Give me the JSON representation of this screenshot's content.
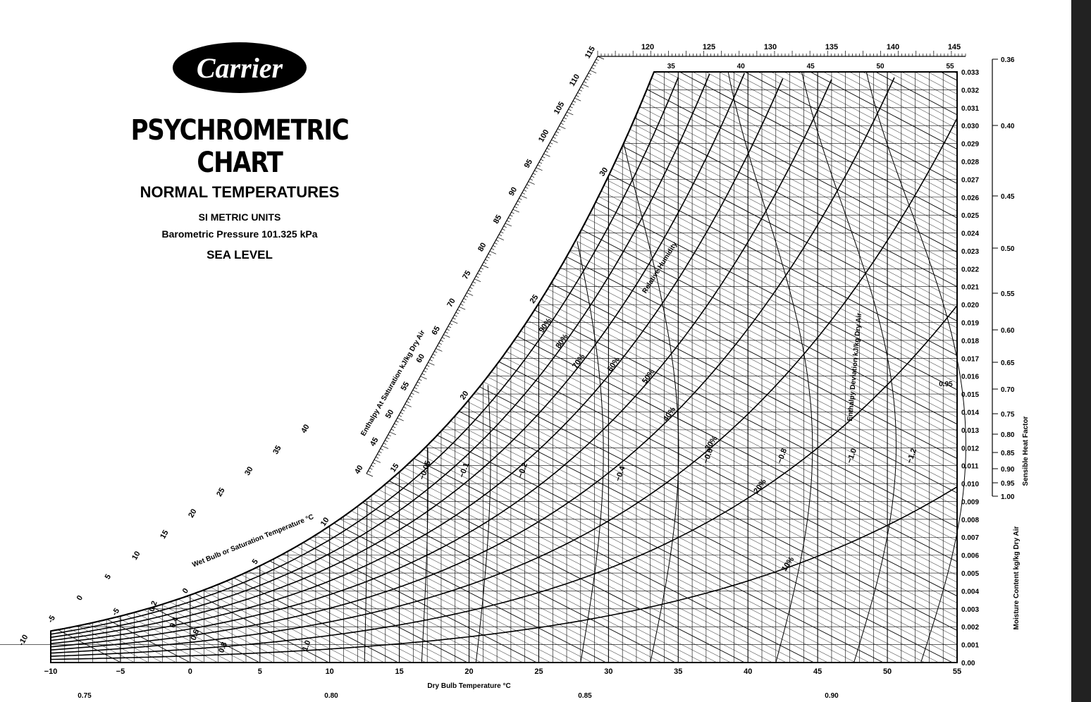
{
  "brand": {
    "logo_text": "Carrier",
    "title": "PSYCHROMETRIC CHART",
    "subtitle": "NORMAL TEMPERATURES",
    "units": "SI METRIC UNITS",
    "pressure": "Barometric Pressure 101.325 kPa",
    "elevation": "SEA LEVEL"
  },
  "colors": {
    "ink": "#000000",
    "background": "#ffffff",
    "right_bar": "#222222"
  },
  "chart_data": {
    "type": "line",
    "title": "PSYCHROMETRIC CHART",
    "xlabel": "Dry Bulb Temperature °C",
    "ylabel": "Moisture Content kg/kg Dry Air",
    "xlim": [
      -10,
      55
    ],
    "ylim": [
      0,
      0.033
    ],
    "x_ticks": [
      "−10",
      "−5",
      "0",
      "5",
      "10",
      "15",
      "20",
      "25",
      "30",
      "35",
      "40",
      "45",
      "50",
      "55"
    ],
    "y_ticks": [
      "0.00",
      "0.001",
      "0.002",
      "0.003",
      "0.004",
      "0.005",
      "0.006",
      "0.007",
      "0.008",
      "0.009",
      "0.010",
      "0.011",
      "0.012",
      "0.013",
      "0.014",
      "0.015",
      "0.016",
      "0.017",
      "0.018",
      "0.019",
      "0.020",
      "0.021",
      "0.022",
      "0.023",
      "0.024",
      "0.025",
      "0.026",
      "0.027",
      "0.028",
      "0.029",
      "0.030",
      "0.031",
      "0.032",
      "0.033"
    ],
    "top_db_labels": [
      "35",
      "40",
      "45",
      "50",
      "55"
    ],
    "enthalpy_label": "Enthalpy At Saturation kJ/kg Dry Air",
    "enthalpy_values": [
      40,
      45,
      50,
      55,
      60,
      65,
      70,
      75,
      80,
      85,
      90,
      95,
      100,
      105,
      110,
      115
    ],
    "enthalpy_values_top": [
      120,
      125,
      130,
      135,
      140,
      145
    ],
    "enthalpy_values_left": [
      -10,
      -5,
      0,
      5,
      10,
      15,
      20,
      25,
      30,
      35,
      40
    ],
    "wet_bulb_label": "Wet Bulb or Saturation Temperature °C",
    "wet_bulb_values": [
      -5,
      0,
      5,
      10,
      15,
      20,
      25,
      30
    ],
    "rh_label": "Relative Humidity",
    "rh_curves": [
      {
        "value": 10,
        "label": "10%"
      },
      {
        "value": 20,
        "label": "20%"
      },
      {
        "value": 30,
        "label": "30%"
      },
      {
        "value": 40,
        "label": "40%"
      },
      {
        "value": 50,
        "label": "50%"
      },
      {
        "value": 60,
        "label": "60%"
      },
      {
        "value": 70,
        "label": "70%"
      },
      {
        "value": 80,
        "label": "80%"
      },
      {
        "value": 90,
        "label": "90%"
      },
      {
        "value": 100,
        "label": ""
      }
    ],
    "enthalpy_deviation_label": "Enthalpy Deviation kJ/kg Dry Air",
    "enthalpy_deviation_values": [
      "−0.05",
      "−0.1",
      "−0.2",
      "−0.4",
      "−0.6",
      "−0.8",
      "−1.0",
      "−1.2",
      "0.2",
      "0.4",
      "0.6",
      "0.8",
      "1.0"
    ],
    "shf_label": "Sensible Heat Factor",
    "shf_scale": [
      "0.36",
      "0.40",
      "0.45",
      "0.50",
      "0.55",
      "0.60",
      "0.65",
      "0.70",
      "0.75",
      "0.80",
      "0.85",
      "0.90",
      "0.95",
      "1.00"
    ],
    "shf_bottom": [
      "0.75",
      "0.80",
      "0.85",
      "0.90"
    ],
    "shf_inside": "0.95"
  }
}
